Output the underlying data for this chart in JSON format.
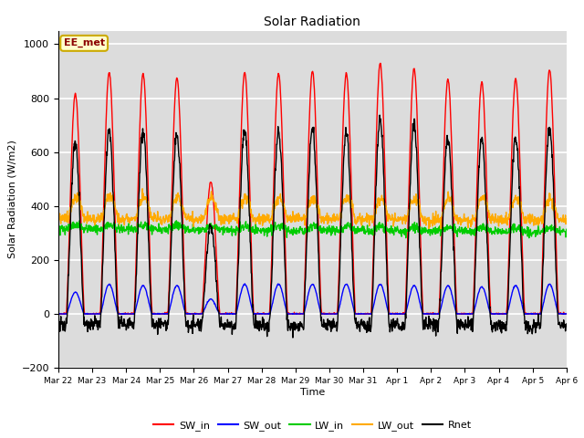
{
  "title": "Solar Radiation",
  "ylabel": "Solar Radiation (W/m2)",
  "xlabel": "Time",
  "annotation": "EE_met",
  "ylim": [
    -200,
    1050
  ],
  "yticks": [
    -200,
    0,
    200,
    400,
    600,
    800,
    1000
  ],
  "background_color": "#dcdcdc",
  "grid_color": "white",
  "series_colors": {
    "SW_in": "#ff0000",
    "SW_out": "#0000ff",
    "LW_in": "#00cc00",
    "LW_out": "#ffaa00",
    "Rnet": "#000000"
  },
  "n_days": 15,
  "time_step_hours": 0.25,
  "x_tick_labels": [
    "Mar 22",
    "Mar 23",
    "Mar 24",
    "Mar 25",
    "Mar 26",
    "Mar 27",
    "Mar 28",
    "Mar 29",
    "Mar 30",
    "Mar 31",
    "Apr 1",
    "Apr 2",
    "Apr 3",
    "Apr 4",
    "Apr 5",
    "Apr 6"
  ],
  "legend_labels": [
    "SW_in",
    "SW_out",
    "LW_in",
    "LW_out",
    "Rnet"
  ]
}
